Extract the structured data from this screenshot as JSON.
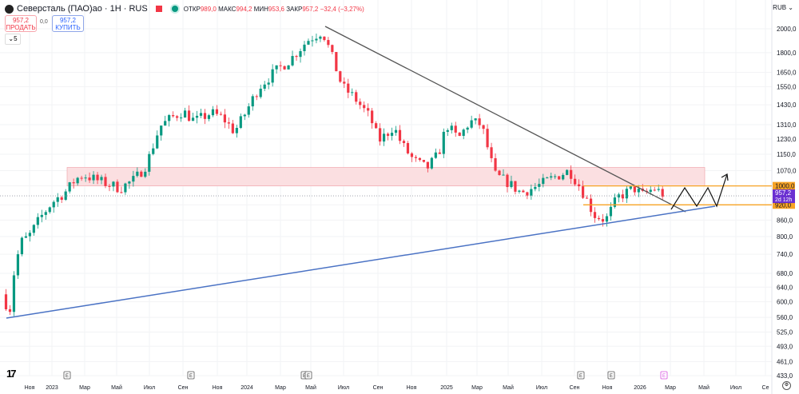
{
  "header": {
    "title": "Северсталь (ПАО)ао · 1H · RUS",
    "open_label": "ОТКР",
    "open": "989,0",
    "high_label": "МАКС",
    "high": "994,2",
    "low_label": "МИН",
    "low": "953,6",
    "close_label": "ЗАКР",
    "close": "957,2",
    "change": "−32,4 (−3,27%)"
  },
  "trade": {
    "sell_price": "957,2",
    "sell_label": "ПРОДАТЬ",
    "spread": "0,0",
    "buy_price": "957,2",
    "buy_label": "КУПИТЬ",
    "collapse_count": "5"
  },
  "currency": "RUB",
  "colors": {
    "up": "#089981",
    "down": "#f23645",
    "zone": "#f7c9cc",
    "level": "#f7a325",
    "trend_upper": "#555555",
    "trend_lower": "#4a72c4",
    "price_tag": "#6a2fd1"
  },
  "chart_data": {
    "type": "candlestick",
    "title": "Северсталь (ПАО)ао",
    "scale": "log",
    "ylim": [
      433,
      2000
    ],
    "y_ticks": [
      "2000,0",
      "1800,0",
      "1650,0",
      "1550,0",
      "1430,0",
      "1310,0",
      "1230,0",
      "1150,0",
      "1070,0",
      "1000,0",
      "920,0",
      "860,0",
      "800,0",
      "740,0",
      "680,0",
      "640,0",
      "600,0",
      "560,0",
      "525,0",
      "493,0",
      "461,0",
      "433,0"
    ],
    "x_ticks": [
      "Ноя",
      "2023",
      "Мар",
      "Май",
      "Июл",
      "Сен",
      "Ноя",
      "2024",
      "Мар",
      "Май",
      "Июл",
      "Сен",
      "Ноя",
      "2025",
      "Мар",
      "Май",
      "Июл",
      "Сен",
      "Ноя",
      "2026",
      "Мар",
      "Май",
      "Июл",
      "Се"
    ],
    "price_path_months": [
      [
        0,
        620
      ],
      [
        0.3,
        560
      ],
      [
        0.6,
        680
      ],
      [
        1,
        780
      ],
      [
        1.5,
        800
      ],
      [
        2.2,
        870
      ],
      [
        2.9,
        930
      ],
      [
        3.8,
        980
      ],
      [
        4.3,
        1030
      ],
      [
        4.8,
        1050
      ],
      [
        5.8,
        1020
      ],
      [
        7,
        990
      ],
      [
        7.9,
        1030
      ],
      [
        8.6,
        1100
      ],
      [
        9.4,
        1300
      ],
      [
        10.1,
        1350
      ],
      [
        10.8,
        1390
      ],
      [
        11.5,
        1330
      ],
      [
        12.5,
        1380
      ],
      [
        13.2,
        1350
      ],
      [
        13.9,
        1270
      ],
      [
        14.4,
        1350
      ],
      [
        15.4,
        1550
      ],
      [
        16.3,
        1650
      ],
      [
        17.3,
        1750
      ],
      [
        18.3,
        1900
      ],
      [
        19.2,
        1980
      ],
      [
        19.7,
        1800
      ],
      [
        20.4,
        1550
      ],
      [
        21.1,
        1480
      ],
      [
        22.1,
        1350
      ],
      [
        22.6,
        1220
      ],
      [
        23,
        1250
      ],
      [
        23.5,
        1300
      ],
      [
        24,
        1200
      ],
      [
        24.7,
        1120
      ],
      [
        25.5,
        1080
      ],
      [
        26.2,
        1150
      ],
      [
        26.7,
        1310
      ],
      [
        27.4,
        1230
      ],
      [
        28.1,
        1330
      ],
      [
        28.8,
        1310
      ],
      [
        29.6,
        1050
      ],
      [
        30.3,
        1020
      ],
      [
        31.2,
        970
      ],
      [
        32.2,
        1000
      ],
      [
        33.2,
        1040
      ],
      [
        34.1,
        1070
      ],
      [
        34.8,
        990
      ],
      [
        35.6,
        880
      ],
      [
        36.3,
        860
      ],
      [
        37,
        950
      ],
      [
        38,
        990
      ],
      [
        38.5,
        960
      ],
      [
        39.2,
        990
      ],
      [
        39.9,
        957.2
      ]
    ],
    "current_price": "957,2",
    "current_countdown": "2d 12h",
    "levels": [
      {
        "label": "1000,0",
        "value": 1000
      },
      {
        "label": "920,0",
        "value": 920
      }
    ],
    "zone": [
      1000,
      1085
    ],
    "earnings_markers": [
      "E",
      "E",
      "E",
      "E",
      "E",
      "E",
      "E"
    ]
  }
}
